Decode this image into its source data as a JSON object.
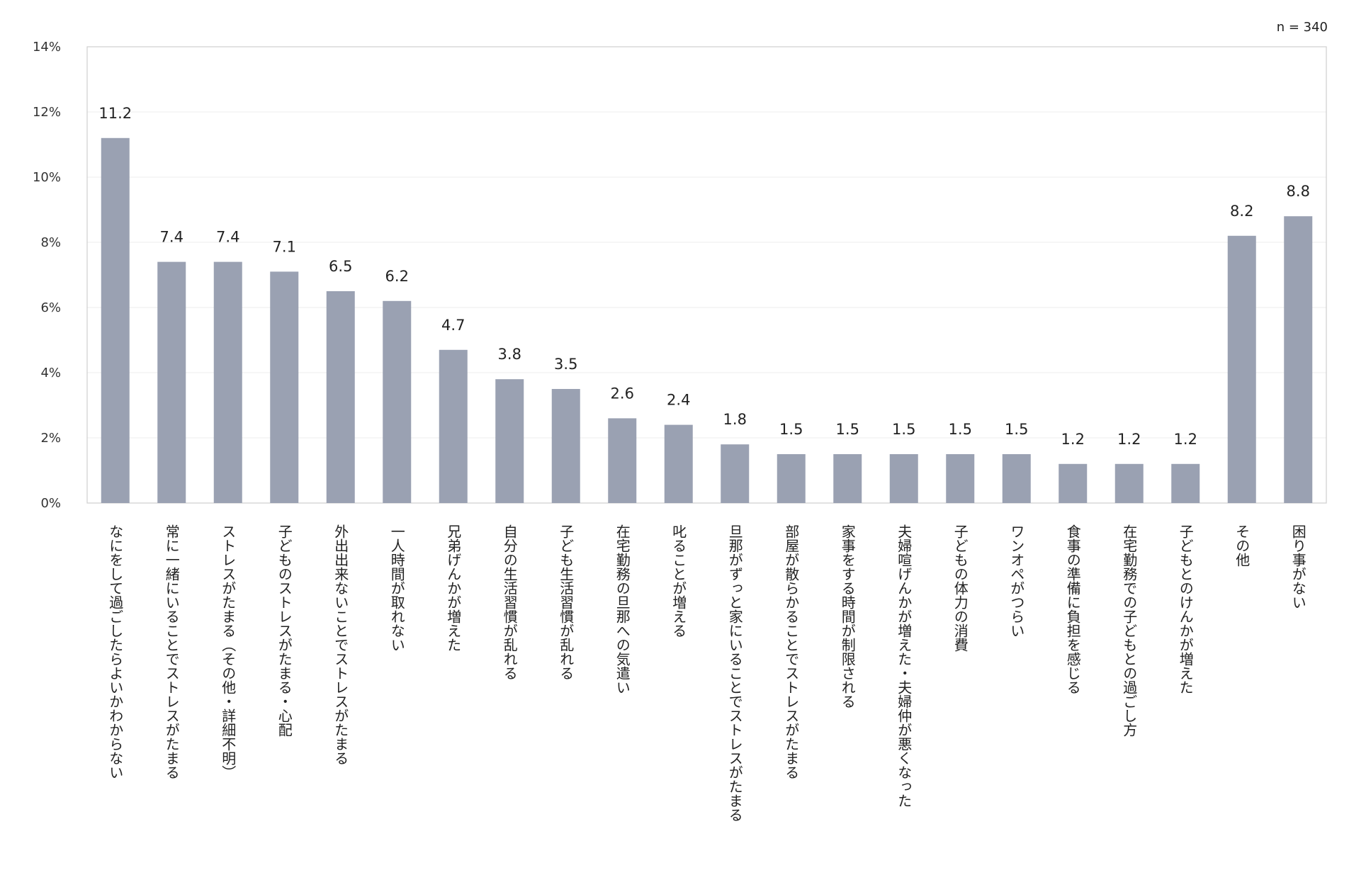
{
  "note": "n = 340",
  "chart_data": {
    "type": "bar",
    "ylim": [
      0,
      14
    ],
    "yticks": [
      0,
      2,
      4,
      6,
      8,
      10,
      12,
      14
    ],
    "ytick_labels": [
      "0%",
      "2%",
      "4%",
      "6%",
      "8%",
      "10%",
      "12%",
      "14%"
    ],
    "grid": true,
    "bar_color": "#9aa1b2",
    "categories": [
      "なにをして過ごしたらよいかわからない",
      "常に一緒にいることでストレスがたまる",
      "ストレスがたまる（その他・詳細不明）",
      "子どものストレスがたまる・心配",
      "外出出来ないことでストレスがたまる",
      "一人時間が取れない",
      "兄弟げんかが増えた",
      "自分の生活習慣が乱れる",
      "子ども生活習慣が乱れる",
      "在宅勤務の旦那への気遣い",
      "叱ることが増える",
      "旦那がずっと家にいることでストレスがたまる",
      "部屋が散らかることでストレスがたまる",
      "家事をする時間が制限される",
      "夫婦喧げんかが増えた・夫婦仲が悪くなった",
      "子どもの体力の消費",
      "ワンオペがつらい",
      "食事の準備に負担を感じる",
      "在宅勤務での子どもとの過ごし方",
      "子どもとのけんかが増えた",
      "その他",
      "困り事がない"
    ],
    "values": [
      11.2,
      7.4,
      7.4,
      7.1,
      6.5,
      6.2,
      4.7,
      3.8,
      3.5,
      2.6,
      2.4,
      1.8,
      1.5,
      1.5,
      1.5,
      1.5,
      1.5,
      1.2,
      1.2,
      1.2,
      8.2,
      8.8
    ],
    "data_labels": [
      "11.2",
      "7.4",
      "7.4",
      "7.1",
      "6.5",
      "6.2",
      "4.7",
      "3.8",
      "3.5",
      "2.6",
      "2.4",
      "1.8",
      "1.5",
      "1.5",
      "1.5",
      "1.5",
      "1.5",
      "1.2",
      "1.2",
      "1.2",
      "8.2",
      "8.8"
    ]
  }
}
